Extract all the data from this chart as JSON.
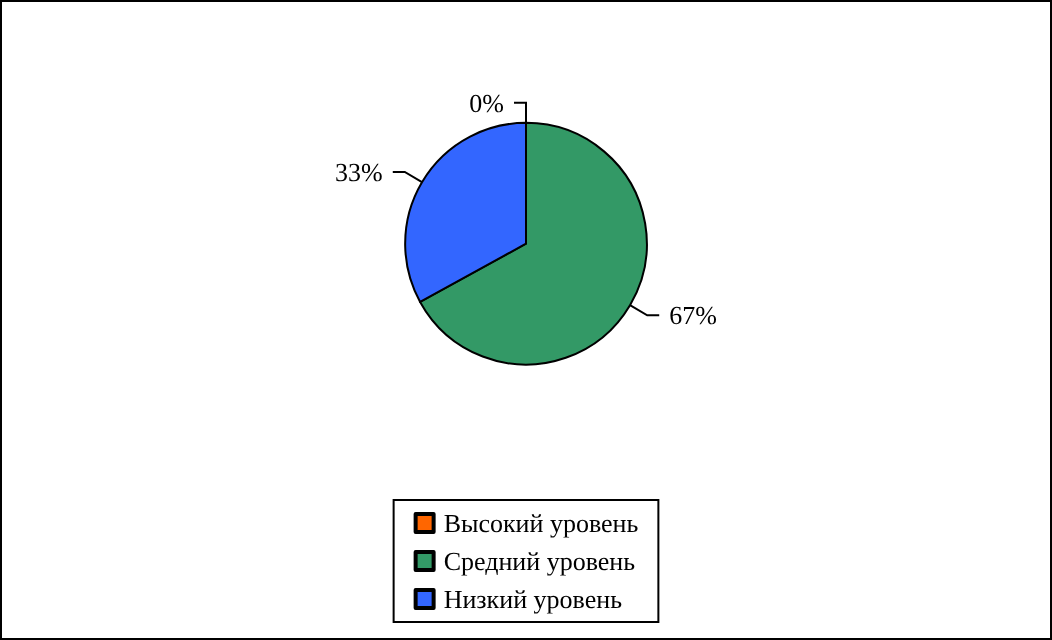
{
  "chart_data": {
    "type": "pie",
    "categories": [
      "Высокий уровень",
      "Средний уровень",
      "Низкий уровень"
    ],
    "values": [
      0,
      67,
      33
    ],
    "colors": [
      "#ff6600",
      "#339966",
      "#3366ff"
    ],
    "value_labels": [
      "0%",
      "67%",
      "33%"
    ],
    "legend": "bottom"
  }
}
